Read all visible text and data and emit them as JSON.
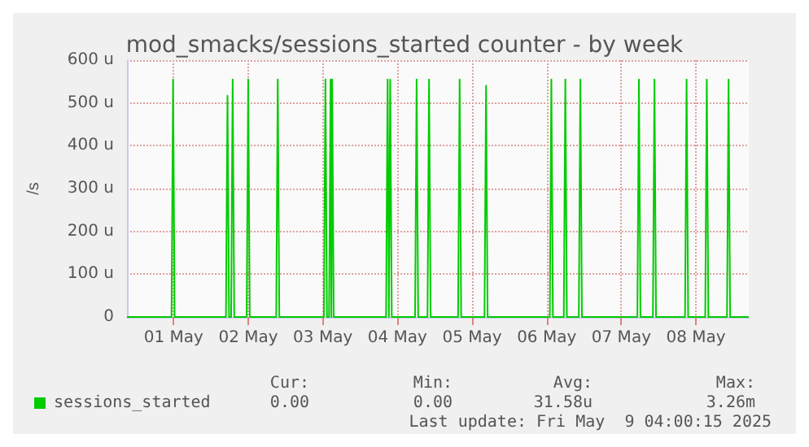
{
  "chart_data": {
    "type": "line",
    "title": "mod_smacks/sessions_started counter - by week",
    "ylabel": "/s",
    "x": [
      "2025-04-30T09:00",
      "2025-04-30T23:20",
      "2025-04-30T23:50",
      "2025-05-01T00:20",
      "2025-05-01T16:50",
      "2025-05-01T17:20",
      "2025-05-01T17:50",
      "2025-05-01T18:30",
      "2025-05-01T19:00",
      "2025-05-01T19:30",
      "2025-05-01T23:30",
      "2025-05-02T00:00",
      "2025-05-02T00:30",
      "2025-05-02T09:00",
      "2025-05-02T09:30",
      "2025-05-02T10:00",
      "2025-05-03T00:20",
      "2025-05-03T00:50",
      "2025-05-03T01:20",
      "2025-05-03T02:00",
      "2025-05-03T02:30",
      "2025-05-03T02:45",
      "2025-05-03T03:00",
      "2025-05-03T03:30",
      "2025-05-03T20:20",
      "2025-05-03T20:50",
      "2025-05-03T21:15",
      "2025-05-03T21:40",
      "2025-05-03T22:10",
      "2025-05-04T05:40",
      "2025-05-04T06:10",
      "2025-05-04T06:40",
      "2025-05-04T09:40",
      "2025-05-04T10:10",
      "2025-05-04T10:40",
      "2025-05-04T19:30",
      "2025-05-04T20:00",
      "2025-05-04T20:30",
      "2025-05-05T04:00",
      "2025-05-05T04:30",
      "2025-05-05T05:00",
      "2025-05-06T01:00",
      "2025-05-06T01:30",
      "2025-05-06T02:00",
      "2025-05-06T05:30",
      "2025-05-06T06:00",
      "2025-05-06T06:30",
      "2025-05-06T10:20",
      "2025-05-06T10:50",
      "2025-05-06T11:20",
      "2025-05-07T05:10",
      "2025-05-07T05:40",
      "2025-05-07T06:10",
      "2025-05-07T10:10",
      "2025-05-07T10:40",
      "2025-05-07T11:10",
      "2025-05-07T20:30",
      "2025-05-07T21:00",
      "2025-05-07T21:30",
      "2025-05-08T03:00",
      "2025-05-08T03:30",
      "2025-05-08T04:00",
      "2025-05-08T10:00",
      "2025-05-08T10:30",
      "2025-05-08T11:00",
      "2025-05-08T17:00"
    ],
    "series": [
      {
        "name": "sessions_started",
        "color": "#00cc00",
        "values": [
          0,
          0,
          555,
          0,
          0,
          517,
          0,
          0,
          555,
          0,
          0,
          555,
          0,
          0,
          555,
          0,
          0,
          555,
          0,
          0,
          555,
          0,
          555,
          0,
          0,
          555,
          0,
          555,
          0,
          0,
          555,
          0,
          0,
          555,
          0,
          0,
          555,
          0,
          0,
          540,
          0,
          0,
          555,
          0,
          0,
          555,
          0,
          0,
          555,
          0,
          0,
          555,
          0,
          0,
          555,
          0,
          0,
          555,
          0,
          0,
          555,
          0,
          0,
          555,
          0,
          0
        ]
      }
    ],
    "xlim": [
      "2025-04-30T09:00",
      "2025-05-08T17:00"
    ],
    "xticks": [
      {
        "value": "2025-05-01T00:00",
        "label": "01 May"
      },
      {
        "value": "2025-05-02T00:00",
        "label": "02 May"
      },
      {
        "value": "2025-05-03T00:00",
        "label": "03 May"
      },
      {
        "value": "2025-05-04T00:00",
        "label": "04 May"
      },
      {
        "value": "2025-05-05T00:00",
        "label": "05 May"
      },
      {
        "value": "2025-05-06T00:00",
        "label": "06 May"
      },
      {
        "value": "2025-05-07T00:00",
        "label": "07 May"
      },
      {
        "value": "2025-05-08T00:00",
        "label": "08 May"
      }
    ],
    "ylim": [
      0,
      600
    ],
    "yticks": [
      0,
      {
        "value": 100,
        "label": "100 u"
      },
      {
        "value": 200,
        "label": "200 u"
      },
      {
        "value": 300,
        "label": "300 u"
      },
      {
        "value": 400,
        "label": "400 u"
      },
      {
        "value": 500,
        "label": "500 u"
      },
      {
        "value": 600,
        "label": "600 u"
      }
    ],
    "grid": true,
    "legend": "bottom left",
    "marker": "none",
    "line_style": "solid",
    "annotations": [
      "Cur:",
      "Min:",
      "Avg:",
      "Max:",
      "0.00",
      "0.00",
      "31.58u",
      "3.26m",
      "Last update: Fri May  9 04:00:15 2025"
    ]
  }
}
